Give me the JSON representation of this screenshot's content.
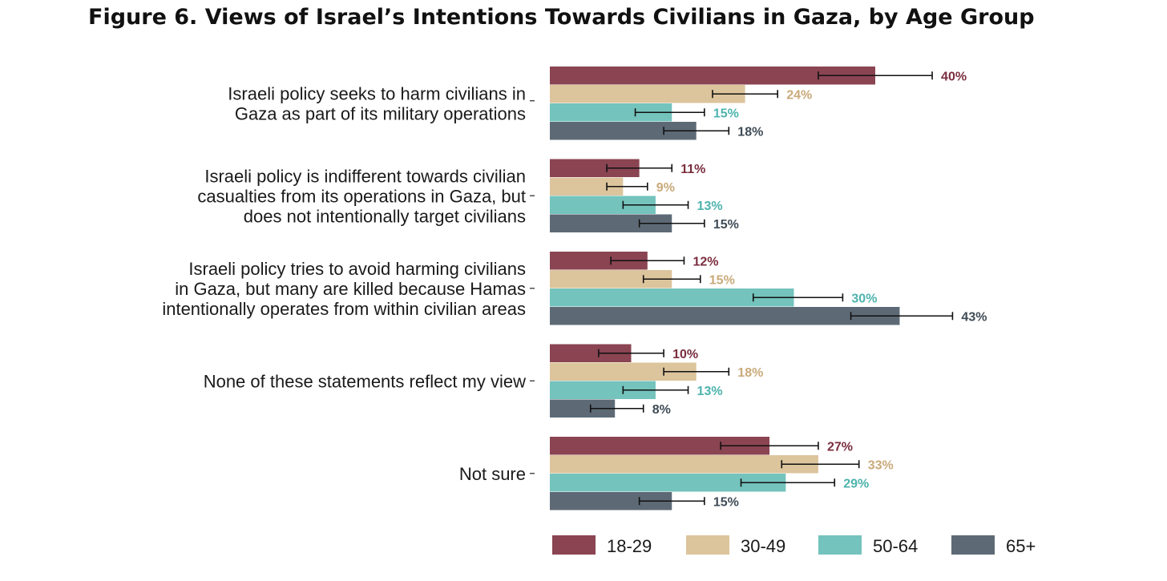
{
  "title": "Figure 6. Views of Israel’s Intentions Towards Civilians in Gaza, by Age Group",
  "chart_data": {
    "type": "bar",
    "orientation": "horizontal",
    "title": "Figure 6. Views of Israel’s Intentions Towards Civilians in Gaza, by Age Group",
    "xlim": [
      0,
      50
    ],
    "grid": false,
    "error_bars": true,
    "legend_position": "bottom",
    "value_suffix": "%",
    "categories": [
      [
        "Israeli policy seeks to harm civilians in",
        "Gaza as part of its military operations"
      ],
      [
        "Israeli policy is indifferent towards civilian",
        "casualties from its operations in Gaza, but",
        "does not intentionally target civilians"
      ],
      [
        "Israeli policy tries to avoid harming civilians",
        "in Gaza, but many are killed because Hamas",
        "intentionally operates from within civilian areas"
      ],
      [
        "None of these statements reflect my view"
      ],
      [
        "Not sure"
      ]
    ],
    "series": [
      {
        "name": "18-29",
        "color": "#8a4452",
        "label_color": "#7a2e3e",
        "values": [
          40,
          11,
          12,
          10,
          27
        ],
        "error_low": [
          33,
          7,
          7.5,
          6,
          21
        ],
        "error_high": [
          47,
          15,
          16.5,
          14,
          33
        ]
      },
      {
        "name": "30-49",
        "color": "#dcc49c",
        "label_color": "#c9aa7a",
        "values": [
          24,
          9,
          15,
          18,
          33
        ],
        "error_low": [
          20,
          7,
          11.5,
          14,
          28.5
        ],
        "error_high": [
          28,
          12,
          18.5,
          22,
          38
        ]
      },
      {
        "name": "50-64",
        "color": "#74c3bd",
        "label_color": "#4db3ad",
        "values": [
          15,
          13,
          30,
          13,
          29
        ],
        "error_low": [
          10.5,
          9,
          25,
          9,
          23.5
        ],
        "error_high": [
          19,
          17,
          36,
          17,
          35
        ]
      },
      {
        "name": "65+",
        "color": "#5d6a76",
        "label_color": "#3f4b56",
        "values": [
          18,
          15,
          43,
          8,
          15
        ],
        "error_low": [
          14,
          11,
          37,
          5,
          11
        ],
        "error_high": [
          22,
          19,
          49.5,
          11.5,
          19
        ]
      }
    ]
  }
}
